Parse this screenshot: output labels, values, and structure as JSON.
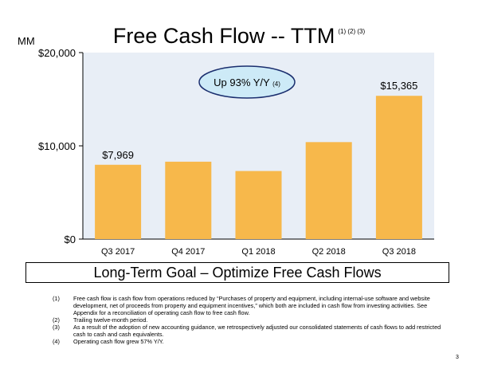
{
  "title": "Free Cash Flow -- TTM",
  "title_footnote_refs": "(1) (2) (3)",
  "unit_label": "MM",
  "goal_box": "Long-Term Goal – Optimize Free Cash Flows",
  "callout": {
    "text": "Up 93% Y/Y",
    "ref": "(4)"
  },
  "footnotes": [
    {
      "num": "(1)",
      "text": "Free cash flow is cash flow from operations reduced by “Purchases of property and equipment, including internal-use software and website development, net of proceeds from property and equipment incentives,” which both are included in cash flow from investing activities. See Appendix for a reconciliation of operating cash flow to free cash flow."
    },
    {
      "num": "(2)",
      "text": "Trailing twelve-month period."
    },
    {
      "num": "(3)",
      "text": "As a result of the adoption of new accounting guidance, we retrospectively adjusted our consolidated statements of cash flows to add restricted cash to cash and cash equivalents."
    },
    {
      "num": "(4)",
      "text": "Operating cash flow grew 57% Y/Y."
    }
  ],
  "page_number": "3",
  "colors": {
    "bar": "#f7b84b",
    "plot_bg": "#e8eef6",
    "callout_fill": "#cdeaf7",
    "callout_stroke": "#1a2e6e"
  },
  "chart_data": {
    "type": "bar",
    "categories": [
      "Q3 2017",
      "Q4 2017",
      "Q1 2018",
      "Q2 2018",
      "Q3 2018"
    ],
    "values": [
      7969,
      8300,
      7300,
      10400,
      15365
    ],
    "data_labels": [
      "$7,969",
      "",
      "",
      "",
      "$15,365"
    ],
    "ylim": [
      0,
      20000
    ],
    "yticks": [
      0,
      10000,
      20000
    ],
    "ytick_labels": [
      "$0",
      "$10,000",
      "$20,000"
    ],
    "title": "Free Cash Flow -- TTM",
    "xlabel": "",
    "ylabel": "MM",
    "grid": false
  }
}
